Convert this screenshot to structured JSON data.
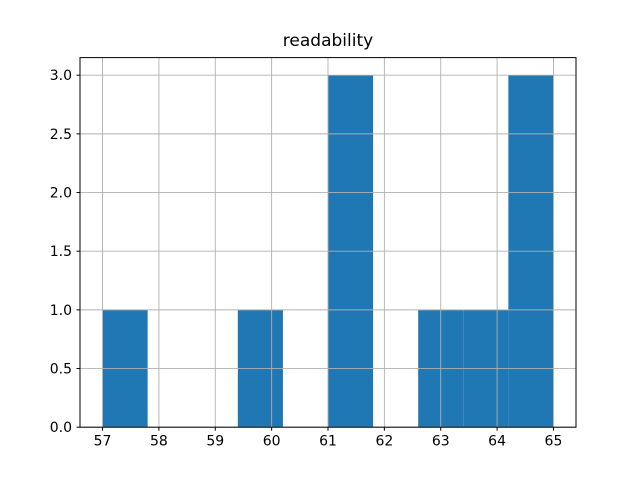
{
  "chart_data": {
    "type": "bar",
    "subtype": "histogram",
    "title": "readability",
    "xlabel": "",
    "ylabel": "",
    "bin_edges": [
      57.0,
      57.8,
      58.6,
      59.4,
      60.2,
      61.0,
      61.8,
      62.6,
      63.4,
      64.2,
      65.0
    ],
    "counts": [
      1,
      0,
      0,
      1,
      0,
      3,
      0,
      1,
      1,
      3
    ],
    "xlim": [
      56.6,
      65.4
    ],
    "ylim": [
      0,
      3.15
    ],
    "xticks": [
      57,
      58,
      59,
      60,
      61,
      62,
      63,
      64,
      65
    ],
    "xtick_labels": [
      "57",
      "58",
      "59",
      "60",
      "61",
      "62",
      "63",
      "64",
      "65"
    ],
    "yticks": [
      0,
      0.5,
      1.0,
      1.5,
      2.0,
      2.5,
      3.0
    ],
    "ytick_labels": [
      "0.0",
      "0.5",
      "1.0",
      "1.5",
      "2.0",
      "2.5",
      "3.0"
    ],
    "grid": true,
    "grid_on_top_of_bars": true,
    "legend": "none",
    "bar_color": "#1f77b4",
    "grid_color": "#b0b0b0",
    "axis_color": "#000000",
    "text_color": "#000000",
    "background_color": "#ffffff"
  }
}
